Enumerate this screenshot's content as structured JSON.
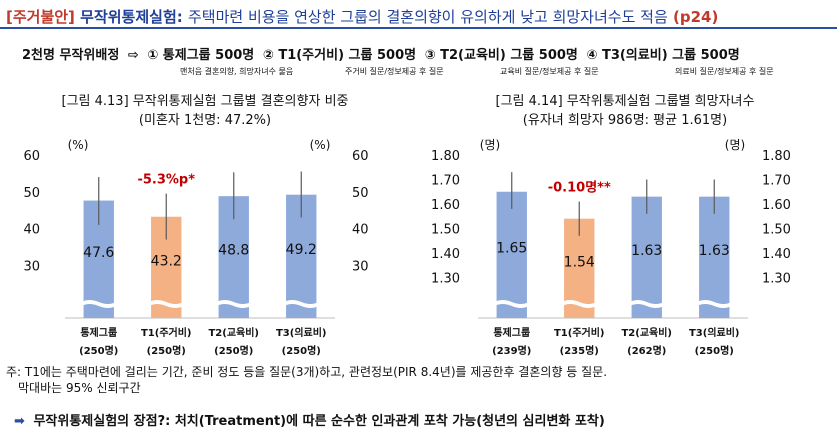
{
  "header": {
    "tag": "[주거불안]",
    "experiment": "무작위통제실험",
    "colon": ":",
    "headline": "주택마련 비용을 연상한 그룹의 결혼의향이 유의하게 낮고 희망자녀수도 적음",
    "page_ref": "(p24)"
  },
  "design": {
    "lead": "2천명 무작위배정",
    "arrow": "⇨",
    "groups": [
      "① 통제그룹 500명",
      "② T1(주거비) 그룹 500명",
      "③ T2(교육비) 그룹 500명",
      "④ T3(의료비) 그룹 500명"
    ],
    "notes": [
      "맨처음 결혼의향, 희망자녀수 물음",
      "주거비 질문/정보제공 후 질문",
      "교육비 질문/정보제공 후 질문",
      "의료비 질문/정보제공 후 질문"
    ]
  },
  "chart_titles": [
    {
      "line1": "[그림 4.13] 무작위통제실험 그룹별 결혼의향자 비중",
      "line2": "(미혼자 1천명: 47.2%)"
    },
    {
      "line1": "[그림 4.14] 무작위통제실험 그룹별 희망자녀수",
      "line2": "(유자녀 희망자 986명: 평균 1.61명)"
    }
  ],
  "chart_data": [
    {
      "type": "bar",
      "categories": [
        "통제그룹",
        "T1(주거비)",
        "T2(교육비)",
        "T3(의료비)"
      ],
      "sublabels": [
        "(250명)",
        "(250명)",
        "(250명)",
        "(250명)"
      ],
      "values": [
        47.6,
        43.2,
        48.8,
        49.2
      ],
      "value_labels": [
        "47.6",
        "43.2",
        "48.8",
        "49.2"
      ],
      "ci_low": [
        41.0,
        37.0,
        42.5,
        43.0
      ],
      "ci_high": [
        54.0,
        49.5,
        55.3,
        55.5
      ],
      "ylim": [
        20,
        60
      ],
      "ticks": [
        "20",
        "30",
        "40",
        "50",
        "60"
      ],
      "ylabel_left": "(%)",
      "ylabel_right": "(%)",
      "annotation": "-5.3%p*",
      "highlight_index": 1,
      "colors": {
        "bar": "#8eaadb",
        "highlight": "#f4b183",
        "annotation": "#c00000",
        "errorbar": "#595959"
      }
    },
    {
      "type": "bar",
      "categories": [
        "통제그룹",
        "T1(주거비)",
        "T2(교육비)",
        "T3(의료비)"
      ],
      "sublabels": [
        "(239명)",
        "(235명)",
        "(262명)",
        "(250명)"
      ],
      "values": [
        1.65,
        1.54,
        1.63,
        1.63
      ],
      "value_labels": [
        "1.65",
        "1.54",
        "1.63",
        "1.63"
      ],
      "ci_low": [
        1.58,
        1.47,
        1.56,
        1.56
      ],
      "ci_high": [
        1.73,
        1.61,
        1.7,
        1.7
      ],
      "ylim": [
        1.2,
        1.8
      ],
      "ticks": [
        "1.30",
        "1.40",
        "1.50",
        "1.60",
        "1.70",
        "1.80"
      ],
      "ylabel_left": "(명)",
      "ylabel_right": "(명)",
      "annotation": "-0.10명**",
      "highlight_index": 1,
      "colors": {
        "bar": "#8eaadb",
        "highlight": "#f4b183",
        "annotation": "#c00000",
        "errorbar": "#595959"
      }
    }
  ],
  "footnote": {
    "line1": "주: T1에는 주택마련에 걸리는 기간, 준비 정도 등을 질문(3개)하고, 관련정보(PIR 8.4년)를 제공한후 결혼의향 등 질문.",
    "line2": "막대바는 95% 신뢰구간"
  },
  "bullet": {
    "icon": "➡",
    "text": "무작위통제실험의 장점?: 처치(Treatment)에 따른 순수한 인과관계 포착 가능(청년의 심리변화 포착)"
  }
}
